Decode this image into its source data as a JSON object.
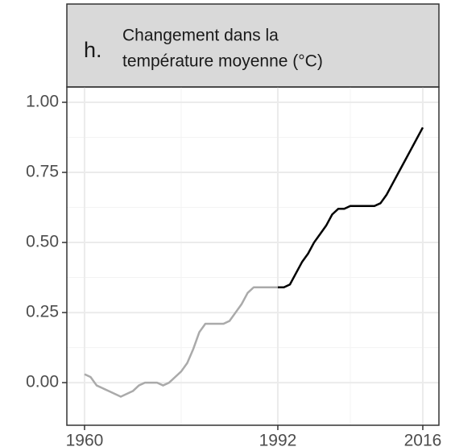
{
  "chart_data": {
    "type": "line",
    "label": "h.",
    "title": [
      "Changement dans la",
      "température moyenne (°C)"
    ],
    "series": [
      {
        "color": "#aaaaaa",
        "x": [
          1960,
          1961,
          1962,
          1963,
          1964,
          1965,
          1966,
          1967,
          1968,
          1969,
          1970,
          1971,
          1972,
          1973,
          1974,
          1975,
          1976,
          1977,
          1978,
          1979,
          1980,
          1981,
          1982,
          1983,
          1984,
          1985,
          1986,
          1987,
          1988,
          1989,
          1990,
          1991,
          1992
        ],
        "values": [
          0.03,
          0.02,
          -0.01,
          -0.02,
          -0.03,
          -0.04,
          -0.05,
          -0.04,
          -0.03,
          -0.01,
          0.0,
          0.0,
          0.0,
          -0.01,
          0.0,
          0.02,
          0.04,
          0.07,
          0.12,
          0.18,
          0.21,
          0.21,
          0.21,
          0.21,
          0.22,
          0.25,
          0.28,
          0.32,
          0.34,
          0.34,
          0.34,
          0.34,
          0.34
        ]
      },
      {
        "color": "#000000",
        "x": [
          1992,
          1993,
          1994,
          1995,
          1996,
          1997,
          1998,
          1999,
          2000,
          2001,
          2002,
          2003,
          2004,
          2005,
          2006,
          2007,
          2008,
          2009,
          2010,
          2011,
          2012,
          2013,
          2014,
          2015,
          2016
        ],
        "values": [
          0.34,
          0.34,
          0.35,
          0.39,
          0.43,
          0.46,
          0.5,
          0.53,
          0.56,
          0.6,
          0.62,
          0.62,
          0.63,
          0.63,
          0.63,
          0.63,
          0.63,
          0.64,
          0.67,
          0.71,
          0.75,
          0.79,
          0.83,
          0.87,
          0.91
        ]
      }
    ],
    "xlim": [
      1957.07,
      2018.67
    ],
    "xticks": [
      1960,
      1992,
      2016
    ],
    "ylim": [
      -0.152,
      1.0546
    ],
    "yticks": [
      {
        "value": 0,
        "label": "0.00"
      },
      {
        "value": 0.25,
        "label": "0.25"
      },
      {
        "value": 0.5,
        "label": "0.50"
      },
      {
        "value": 0.75,
        "label": "0.75"
      },
      {
        "value": 1,
        "label": "1.00"
      }
    ],
    "grid": true
  }
}
